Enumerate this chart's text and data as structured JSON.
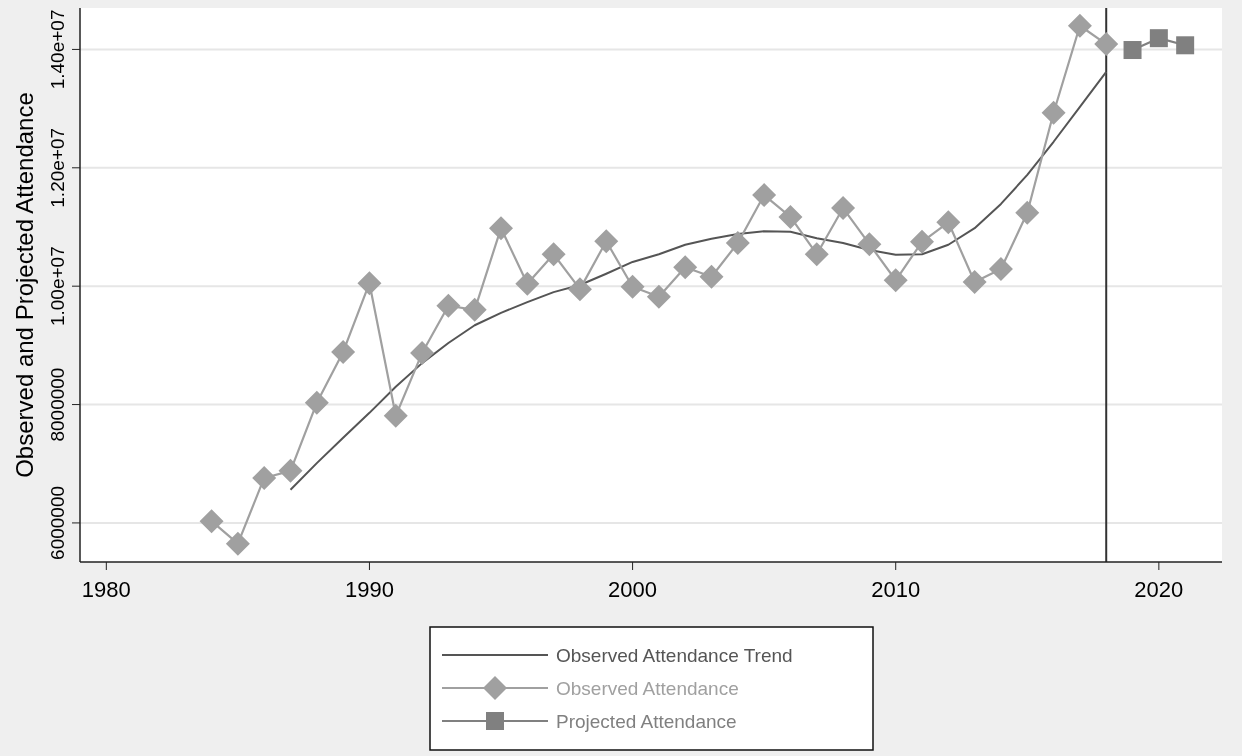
{
  "chart_data": {
    "type": "line",
    "ylabel": "Observed and Projected Attendance",
    "xlim": [
      1979,
      2022.4
    ],
    "xticks": [
      1980,
      1990,
      2000,
      2010,
      2020
    ],
    "ylim": [
      5340000,
      14700000
    ],
    "yticks": [
      6000000,
      8000000,
      {
        "value": 10000000,
        "label": "1.00e+07"
      },
      {
        "value": 12000000,
        "label": "1.20e+07"
      },
      {
        "value": 14000000,
        "label": "1.40e+07"
      }
    ],
    "grid": "y",
    "legend": "bottom",
    "ref_lines": [
      {
        "axis": "x",
        "value": 2018,
        "color": "#333333"
      }
    ],
    "series": [
      {
        "name": "Observed Attendance Trend",
        "marker": "none",
        "color": "#555555",
        "x": [
          1987,
          1988,
          1989,
          1990,
          1991,
          1992,
          1993,
          1994,
          1995,
          1996,
          1997,
          1998,
          1999,
          2000,
          2001,
          2002,
          2003,
          2004,
          2005,
          2006,
          2007,
          2008,
          2009,
          2010,
          2011,
          2012,
          2013,
          2014,
          2015,
          2016,
          2017,
          2018
        ],
        "values": [
          6560000,
          7010000,
          7440000,
          7860000,
          8300000,
          8700000,
          9040000,
          9340000,
          9550000,
          9730000,
          9900000,
          10020000,
          10210000,
          10410000,
          10540000,
          10700000,
          10800000,
          10880000,
          10930000,
          10920000,
          10810000,
          10730000,
          10610000,
          10530000,
          10540000,
          10700000,
          10980000,
          11390000,
          11880000,
          12440000,
          13030000,
          13620000
        ]
      },
      {
        "name": "Observed Attendance",
        "marker": "diamond",
        "color": "#a0a0a0",
        "x": [
          1984,
          1985,
          1986,
          1987,
          1988,
          1989,
          1990,
          1991,
          1992,
          1993,
          1994,
          1995,
          1996,
          1997,
          1998,
          1999,
          2000,
          2001,
          2002,
          2003,
          2004,
          2005,
          2006,
          2007,
          2008,
          2009,
          2010,
          2011,
          2012,
          2013,
          2014,
          2015,
          2016,
          2017,
          2018
        ],
        "values": [
          6030000,
          5650000,
          6760000,
          6880000,
          8030000,
          8890000,
          10050000,
          7810000,
          8870000,
          9670000,
          9600000,
          10980000,
          10040000,
          10540000,
          9950000,
          10760000,
          9990000,
          9820000,
          10320000,
          10160000,
          10730000,
          11540000,
          11170000,
          10540000,
          11320000,
          10710000,
          10100000,
          10750000,
          11080000,
          10070000,
          10290000,
          11240000,
          12930000,
          14400000,
          14090000
        ]
      },
      {
        "name": "Projected Attendance",
        "marker": "square",
        "color": "#808080",
        "x": [
          2019,
          2020,
          2021
        ],
        "values": [
          13990000,
          14190000,
          14070000
        ]
      }
    ]
  }
}
